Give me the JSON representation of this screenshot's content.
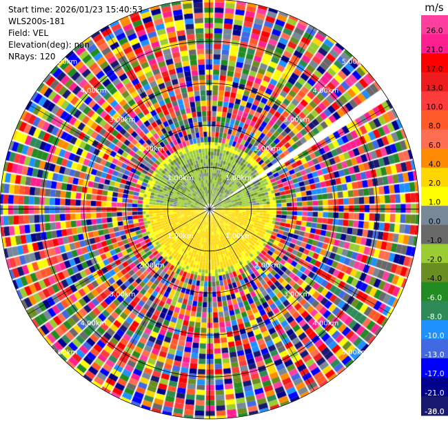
{
  "header": {
    "start_time": "Start time: 2026/01/23 15:40:53",
    "instrument": "WLS200s-181",
    "field": "Field: VEL",
    "elevation": "Elevation(deg): nan",
    "nrays": "NRays: 120"
  },
  "ring_labels": [
    "1.00km",
    "2.00km",
    "3.00km",
    "4.00km",
    "5.00km"
  ],
  "colorbar": {
    "unit": "m/s",
    "ticks": [
      "26.0",
      "21.0",
      "17.0",
      "13.0",
      "10.0",
      "8.0",
      "6.0",
      "4.0",
      "2.0",
      "1.0",
      "0.0",
      "-1.0",
      "-2.0",
      "-4.0",
      "-6.0",
      "-8.0",
      "-10.0",
      "-13.0",
      "-17.0",
      "-21.0",
      "-26.0",
      "-30.0"
    ],
    "colors": [
      "#ff3fa0",
      "#ff1f8f",
      "#ff0000",
      "#ee1c1c",
      "#ff3c3c",
      "#ff5a28",
      "#ff6e50",
      "#ff8c00",
      "#ffd700",
      "#ffff00",
      "#778899",
      "#696969",
      "#9acd32",
      "#6b8e23",
      "#228b22",
      "#2e8b57",
      "#1e90ff",
      "#4169e1",
      "#0000ff",
      "#00008b",
      "#191970"
    ],
    "text_colors": [
      "#000",
      "#000",
      "#000",
      "#000",
      "#000",
      "#000",
      "#000",
      "#000",
      "#000",
      "#000",
      "#000",
      "#000",
      "#000",
      "#000",
      "#fff",
      "#fff",
      "#fff",
      "#fff",
      "#fff",
      "#fff",
      "#fff",
      "#fff"
    ]
  },
  "ppi": {
    "n_rays": 120,
    "max_range_km": 5.0,
    "inner_range_km": 1.6,
    "gap_azimuth_deg": 57
  }
}
